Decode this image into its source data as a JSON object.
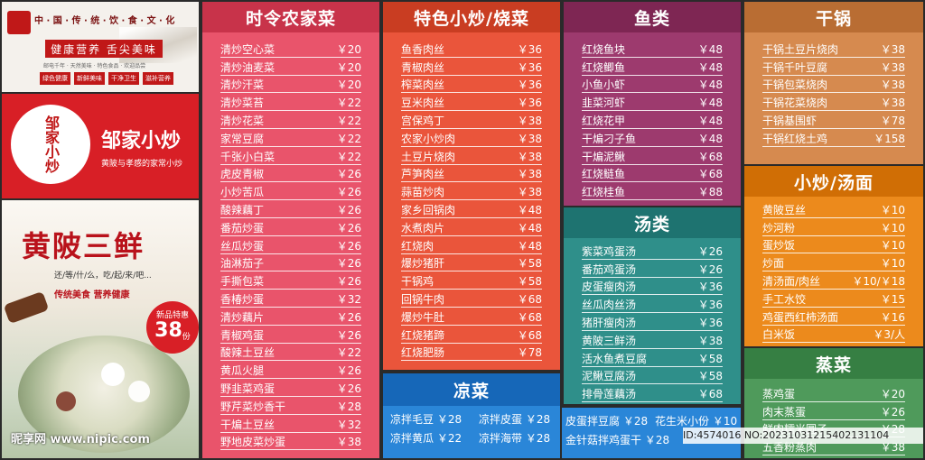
{
  "left": {
    "banner": {
      "title": "中 · 国 · 传 · 统 · 饮 · 食 · 文 · 化",
      "slogan": "健康营养 舌尖美味",
      "sub": "邮电千年 · 天然美味 · 特色食品 · 欢迎品尝",
      "tags": [
        "绿色健康",
        "新鲜美味",
        "干净卫生",
        "滋补营养"
      ]
    },
    "brand": {
      "logo_text": "邹家小炒",
      "name": "邹家小炒",
      "tagline": "黄陂与孝感的家常小炒"
    },
    "promo": {
      "title": "黄陂三鲜",
      "sub": "还/等/什/么，吃/起/来/吧...",
      "tags": "传统美食 营养健康",
      "badge_label": "新品特惠",
      "badge_price": "38",
      "badge_unit": "份"
    }
  },
  "watermark": {
    "left": "昵享网 www.nipic.com",
    "right": "ID:4574016 NO:20231031215402131104"
  },
  "panels": [
    {
      "id": "seasonal",
      "title": "时令农家菜",
      "color": "#e9546b",
      "head_color": "#c8334a",
      "items": [
        [
          "清炒空心菜",
          "￥20"
        ],
        [
          "清炒油麦菜",
          "￥20"
        ],
        [
          "清炒汗菜",
          "￥20"
        ],
        [
          "清炒菜苔",
          "￥22"
        ],
        [
          "清炒花菜",
          "￥22"
        ],
        [
          "家常豆腐",
          "￥22"
        ],
        [
          "千张小白菜",
          "￥22"
        ],
        [
          "虎皮青椒",
          "￥26"
        ],
        [
          "小炒苦瓜",
          "￥26"
        ],
        [
          "酸辣藕丁",
          "￥26"
        ],
        [
          "番茄炒蛋",
          "￥26"
        ],
        [
          "丝瓜炒蛋",
          "￥26"
        ],
        [
          "油淋茄子",
          "￥26"
        ],
        [
          "手撕包菜",
          "￥26"
        ],
        [
          "香椿炒蛋",
          "￥32"
        ],
        [
          "清炒藕片",
          "￥26"
        ],
        [
          "青椒鸡蛋",
          "￥26"
        ],
        [
          "酸辣土豆丝",
          "￥22"
        ],
        [
          "黄瓜火腿",
          "￥26"
        ],
        [
          "野韭菜鸡蛋",
          "￥26"
        ],
        [
          "野芹菜炒香干",
          "￥28"
        ],
        [
          "干煸土豆丝",
          "￥32"
        ],
        [
          "野地皮菜炒蛋",
          "￥38"
        ]
      ]
    },
    {
      "id": "stirfry",
      "title": "特色小炒/烧菜",
      "color": "#ea553b",
      "head_color": "#c93d22",
      "items": [
        [
          "鱼香肉丝",
          "￥36"
        ],
        [
          "青椒肉丝",
          "￥36"
        ],
        [
          "榨菜肉丝",
          "￥36"
        ],
        [
          "豆米肉丝",
          "￥36"
        ],
        [
          "宫保鸡丁",
          "￥38"
        ],
        [
          "农家小炒肉",
          "￥38"
        ],
        [
          "土豆片烧肉",
          "￥38"
        ],
        [
          "芦笋肉丝",
          "￥38"
        ],
        [
          "蒜苗炒肉",
          "￥38"
        ],
        [
          "家乡回锅肉",
          "￥48"
        ],
        [
          "水煮肉片",
          "￥48"
        ],
        [
          "红烧肉",
          "￥48"
        ],
        [
          "爆炒猪肝",
          "￥58"
        ],
        [
          "干锅鸡",
          "￥58"
        ],
        [
          "回锅牛肉",
          "￥68"
        ],
        [
          "爆炒牛肚",
          "￥68"
        ],
        [
          "红烧猪蹄",
          "￥68"
        ],
        [
          "红烧肥肠",
          "￥78"
        ]
      ]
    },
    {
      "id": "fish",
      "title": "鱼类",
      "color": "#9d3a6e",
      "head_color": "#7e2653",
      "items": [
        [
          "红烧鱼块",
          "￥48"
        ],
        [
          "红烧鲫鱼",
          "￥48"
        ],
        [
          "小鱼小虾",
          "￥48"
        ],
        [
          "韭菜河虾",
          "￥48"
        ],
        [
          "红烧花甲",
          "￥48"
        ],
        [
          "干煸刁子鱼",
          "￥48"
        ],
        [
          "干煸泥鳅",
          "￥68"
        ],
        [
          "红烧鲢鱼",
          "￥68"
        ],
        [
          "红烧桂鱼",
          "￥88"
        ]
      ]
    },
    {
      "id": "soup",
      "title": "汤类",
      "color": "#2f8f8a",
      "head_color": "#1e7370",
      "items": [
        [
          "紫菜鸡蛋汤",
          "￥26"
        ],
        [
          "番茄鸡蛋汤",
          "￥26"
        ],
        [
          "皮蛋瘦肉汤",
          "￥36"
        ],
        [
          "丝瓜肉丝汤",
          "￥36"
        ],
        [
          "猪肝瘦肉汤",
          "￥36"
        ],
        [
          "黄陂三鲜汤",
          "￥38"
        ],
        [
          "活水鱼煮豆腐",
          "￥58"
        ],
        [
          "泥鳅豆腐汤",
          "￥58"
        ],
        [
          "排骨莲藕汤",
          "￥68"
        ]
      ]
    },
    {
      "id": "drypot",
      "title": "干锅",
      "color": "#d68a4f",
      "head_color": "#b96d33",
      "items": [
        [
          "干锅土豆片烧肉",
          "￥38"
        ],
        [
          "干锅千叶豆腐",
          "￥38"
        ],
        [
          "干锅包菜烧肉",
          "￥38"
        ],
        [
          "干锅花菜烧肉",
          "￥38"
        ],
        [
          "干锅基围虾",
          "￥78"
        ],
        [
          "干锅红烧土鸡",
          "￥158"
        ]
      ]
    },
    {
      "id": "snacks",
      "title": "小炒/汤面",
      "color": "#ec8a1c",
      "head_color": "#d06e05",
      "items": [
        [
          "黄陂豆丝",
          "￥10"
        ],
        [
          "炒河粉",
          "￥10"
        ],
        [
          "蛋炒饭",
          "￥10"
        ],
        [
          "炒面",
          "￥10"
        ],
        [
          "清汤面/肉丝",
          "￥10/￥18"
        ],
        [
          "手工水饺",
          "￥15"
        ],
        [
          "鸡蛋西红柿汤面",
          "￥16"
        ],
        [
          "白米饭",
          "￥3/人"
        ]
      ]
    },
    {
      "id": "steamed",
      "title": "蒸菜",
      "color": "#4f9a5b",
      "head_color": "#367f43",
      "items": [
        [
          "蒸鸡蛋",
          "￥20"
        ],
        [
          "肉末蒸蛋",
          "￥26"
        ],
        [
          "鲜肉糯米圆子",
          "￥28"
        ],
        [
          "五香粉蒸肉",
          "￥38"
        ]
      ]
    }
  ],
  "cold": {
    "title": "凉菜",
    "color": "#2a86d8",
    "head_color": "#1667b8",
    "rows": [
      [
        "凉拌毛豆 ￥28",
        "凉拌皮蛋 ￥28"
      ],
      [
        "凉拌黄瓜 ￥22",
        "凉拌海带 ￥28"
      ]
    ]
  },
  "cold2": {
    "color": "#2a86d8",
    "rows": [
      [
        "皮蛋拌豆腐 ￥28",
        "花生米小份 ￥10"
      ],
      [
        "金针菇拌鸡蛋干 ￥28",
        ""
      ]
    ]
  }
}
